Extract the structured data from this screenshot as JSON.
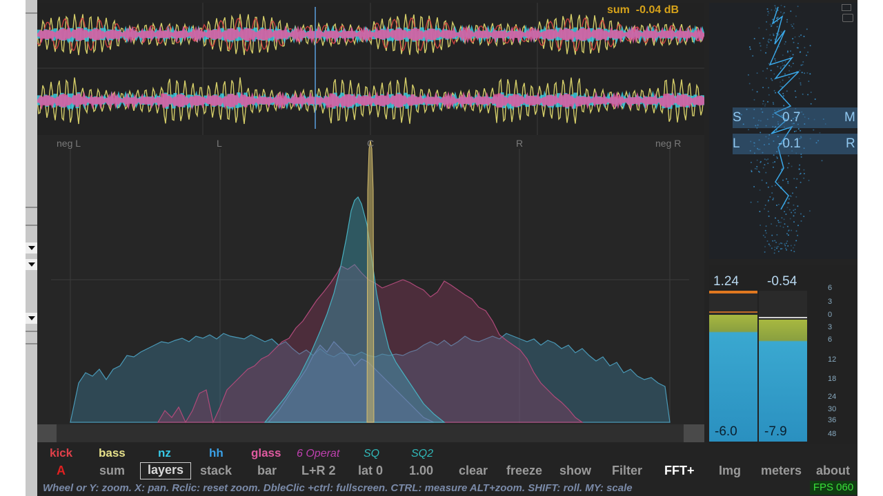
{
  "sum_readout": "sum  -0.04 dB",
  "stereo_labels": [
    "neg L",
    "L",
    "C",
    "R",
    "neg R"
  ],
  "scope": {
    "s_label": "S",
    "s_value": "0.7",
    "m_label": "M",
    "l_label": "L",
    "l_value": "-0.1",
    "r_label": "R"
  },
  "meters": {
    "left_peak": "1.24",
    "right_peak": "-0.54",
    "left_rms": "-6.0",
    "right_rms": "-7.9",
    "scale": [
      "6",
      "3",
      "0",
      "3",
      "6",
      "12",
      "18",
      "24",
      "30",
      "36",
      "48"
    ],
    "left_fill": 0.84,
    "right_fill": 0.81
  },
  "layers": [
    {
      "name": "kick",
      "color": "#e0404a"
    },
    {
      "name": "bass",
      "color": "#e6e08a"
    },
    {
      "name": "nz",
      "color": "#37c8e6"
    },
    {
      "name": "hh",
      "color": "#3aa0e6"
    },
    {
      "name": "glass",
      "color": "#e05aa0"
    },
    {
      "name": "6 Operat",
      "color": "#c040b0"
    },
    {
      "name": "SQ",
      "color": "#30b8b8"
    },
    {
      "name": "SQ2",
      "color": "#30b8b8"
    }
  ],
  "toolbar": {
    "a": "A",
    "sum": "sum",
    "layers": "layers",
    "stack": "stack",
    "bar": "bar",
    "lr2": "L+R 2",
    "lat0": "lat 0",
    "value": "1.00",
    "clear": "clear",
    "freeze": "freeze",
    "show": "show",
    "filter": "Filter",
    "fft": "FFT+",
    "img": "Img",
    "meters": "meters",
    "about": "about"
  },
  "status": "Wheel or Y: zoom. X: pan. Rclic: reset zoom. DbleClic +ctrl: fullscreen. CTRL: measure ALT+zoom. SHIFT: roll. MY: scale",
  "fps": "FPS 060"
}
